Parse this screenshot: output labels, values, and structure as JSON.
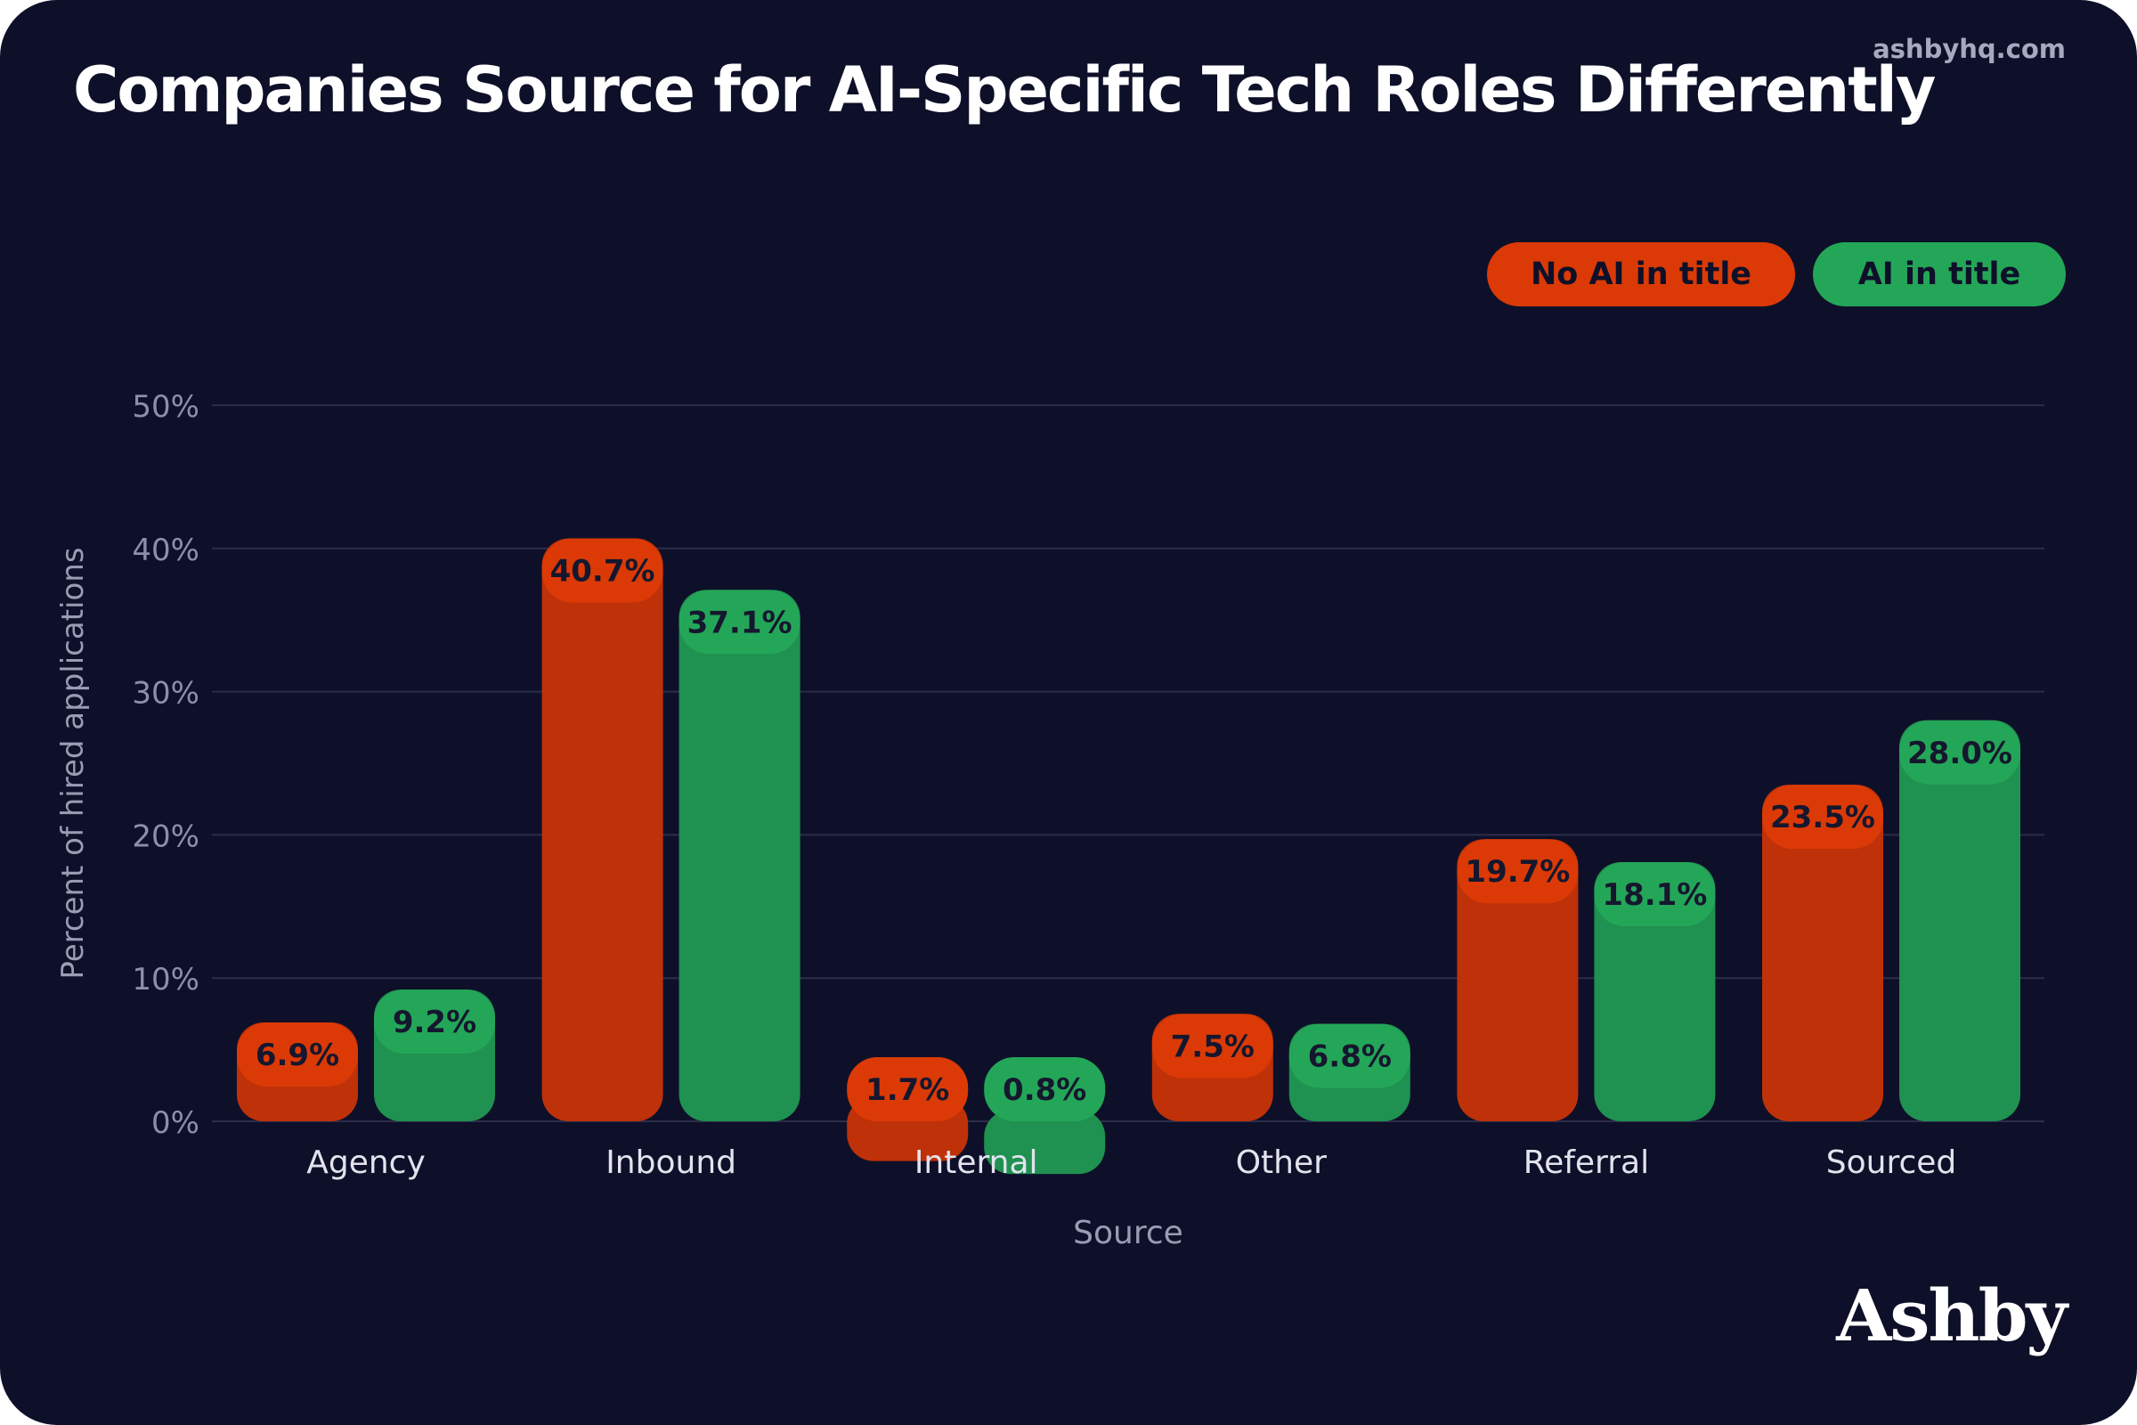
{
  "site": "ashbyhq.com",
  "brand": "Ashby",
  "colors": {
    "background": "#0e1029",
    "no_ai": "#bf3108",
    "no_ai_label": "#db3a06",
    "ai": "#1f9150",
    "ai_label": "#24a658",
    "grid": "#2b2d4a",
    "tick": "#8d8fa8",
    "axis_label": "#9a9cb4",
    "category": "#e2e3ee"
  },
  "chart_data": {
    "type": "bar",
    "title": "Companies Source for AI-Specific Tech Roles Differently",
    "xlabel": "Source",
    "ylabel": "Percent of hired applications",
    "categories": [
      "Agency",
      "Inbound",
      "Internal",
      "Other",
      "Referral",
      "Sourced"
    ],
    "series": [
      {
        "name": "No AI in title",
        "values": [
          6.9,
          40.7,
          1.7,
          7.5,
          19.7,
          23.5
        ],
        "labels": [
          "6.9%",
          "40.7%",
          "1.7%",
          "7.5%",
          "19.7%",
          "23.5%"
        ]
      },
      {
        "name": "AI in title",
        "values": [
          9.2,
          37.1,
          0.8,
          6.8,
          18.1,
          28.0
        ],
        "labels": [
          "9.2%",
          "37.1%",
          "0.8%",
          "6.8%",
          "18.1%",
          "28.0%"
        ]
      }
    ],
    "ylim": [
      0,
      50
    ],
    "yticks": [
      0,
      10,
      20,
      30,
      40,
      50
    ],
    "ytick_labels": [
      "0%",
      "10%",
      "20%",
      "30%",
      "40%",
      "50%"
    ],
    "grid": true,
    "legend_position": "top-right"
  }
}
